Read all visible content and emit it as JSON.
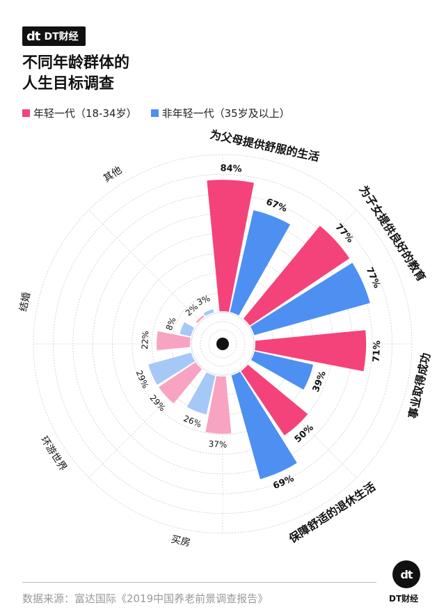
{
  "brand": {
    "logo": "dt",
    "name": "DT财经"
  },
  "title_line1": "不同年龄群体的",
  "title_line2": "人生目标调查",
  "colors": {
    "young": "#f4437a",
    "old": "#4e8ff2",
    "young_light": "#f8a3c1",
    "old_light": "#a6c8f7"
  },
  "legend": {
    "young": "年轻一代（18-34岁）",
    "old": "非年轻一代（35岁及以上）"
  },
  "source": "数据来源：富达国际《2019中国养老前景调查报告》",
  "corner": {
    "logo": "dt",
    "name": "DT财经"
  },
  "chart_data": {
    "type": "radial-bar",
    "categories": [
      "为父母提供舒服的生活",
      "为子女提供良好的教育",
      "事业取得成功",
      "保障舒适的退休生活",
      "买房",
      "环游世界",
      "结婚",
      "其他"
    ],
    "series": [
      {
        "name": "年轻一代（18-34岁）",
        "values": [
          84,
          77,
          71,
          50,
          37,
          29,
          22,
          2
        ]
      },
      {
        "name": "非年轻一代（35岁及以上）",
        "values": [
          67,
          77,
          39,
          69,
          26,
          29,
          8,
          3
        ]
      }
    ],
    "value_labels_young": [
      "84%",
      "77%",
      "71%",
      "50%",
      "37%",
      "29%",
      "22%",
      "2%"
    ],
    "value_labels_old": [
      "67%",
      "77%",
      "39%",
      "69%",
      "26%",
      "29%",
      "8%",
      "3%"
    ],
    "ylim": [
      0,
      100
    ]
  }
}
